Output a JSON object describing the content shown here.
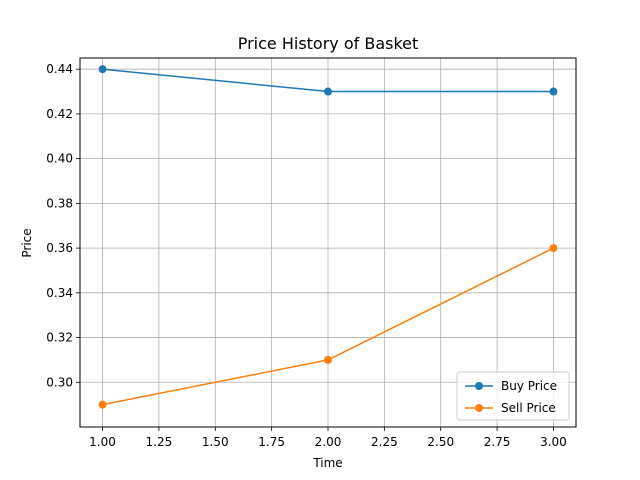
{
  "chart_data": {
    "type": "line",
    "title": "Price History of Basket",
    "xlabel": "Time",
    "ylabel": "Price",
    "xlim": [
      0.9,
      3.1
    ],
    "ylim": [
      0.28,
      0.445
    ],
    "xticks": [
      1.0,
      1.25,
      1.5,
      1.75,
      2.0,
      2.25,
      2.5,
      2.75,
      3.0
    ],
    "xtick_labels": [
      "1.00",
      "1.25",
      "1.50",
      "1.75",
      "2.00",
      "2.25",
      "2.50",
      "2.75",
      "3.00"
    ],
    "yticks": [
      0.3,
      0.32,
      0.34,
      0.36,
      0.38,
      0.4,
      0.42,
      0.44
    ],
    "ytick_labels": [
      "0.30",
      "0.32",
      "0.34",
      "0.36",
      "0.38",
      "0.40",
      "0.42",
      "0.44"
    ],
    "grid": true,
    "legend_position": "lower-right",
    "x": [
      1,
      2,
      3
    ],
    "series": [
      {
        "name": "Buy Price",
        "values": [
          0.44,
          0.43,
          0.43
        ],
        "color": "#1f77b4",
        "marker": "circle"
      },
      {
        "name": "Sell Price",
        "values": [
          0.29,
          0.31,
          0.36
        ],
        "color": "#ff7f0e",
        "marker": "circle"
      }
    ]
  }
}
